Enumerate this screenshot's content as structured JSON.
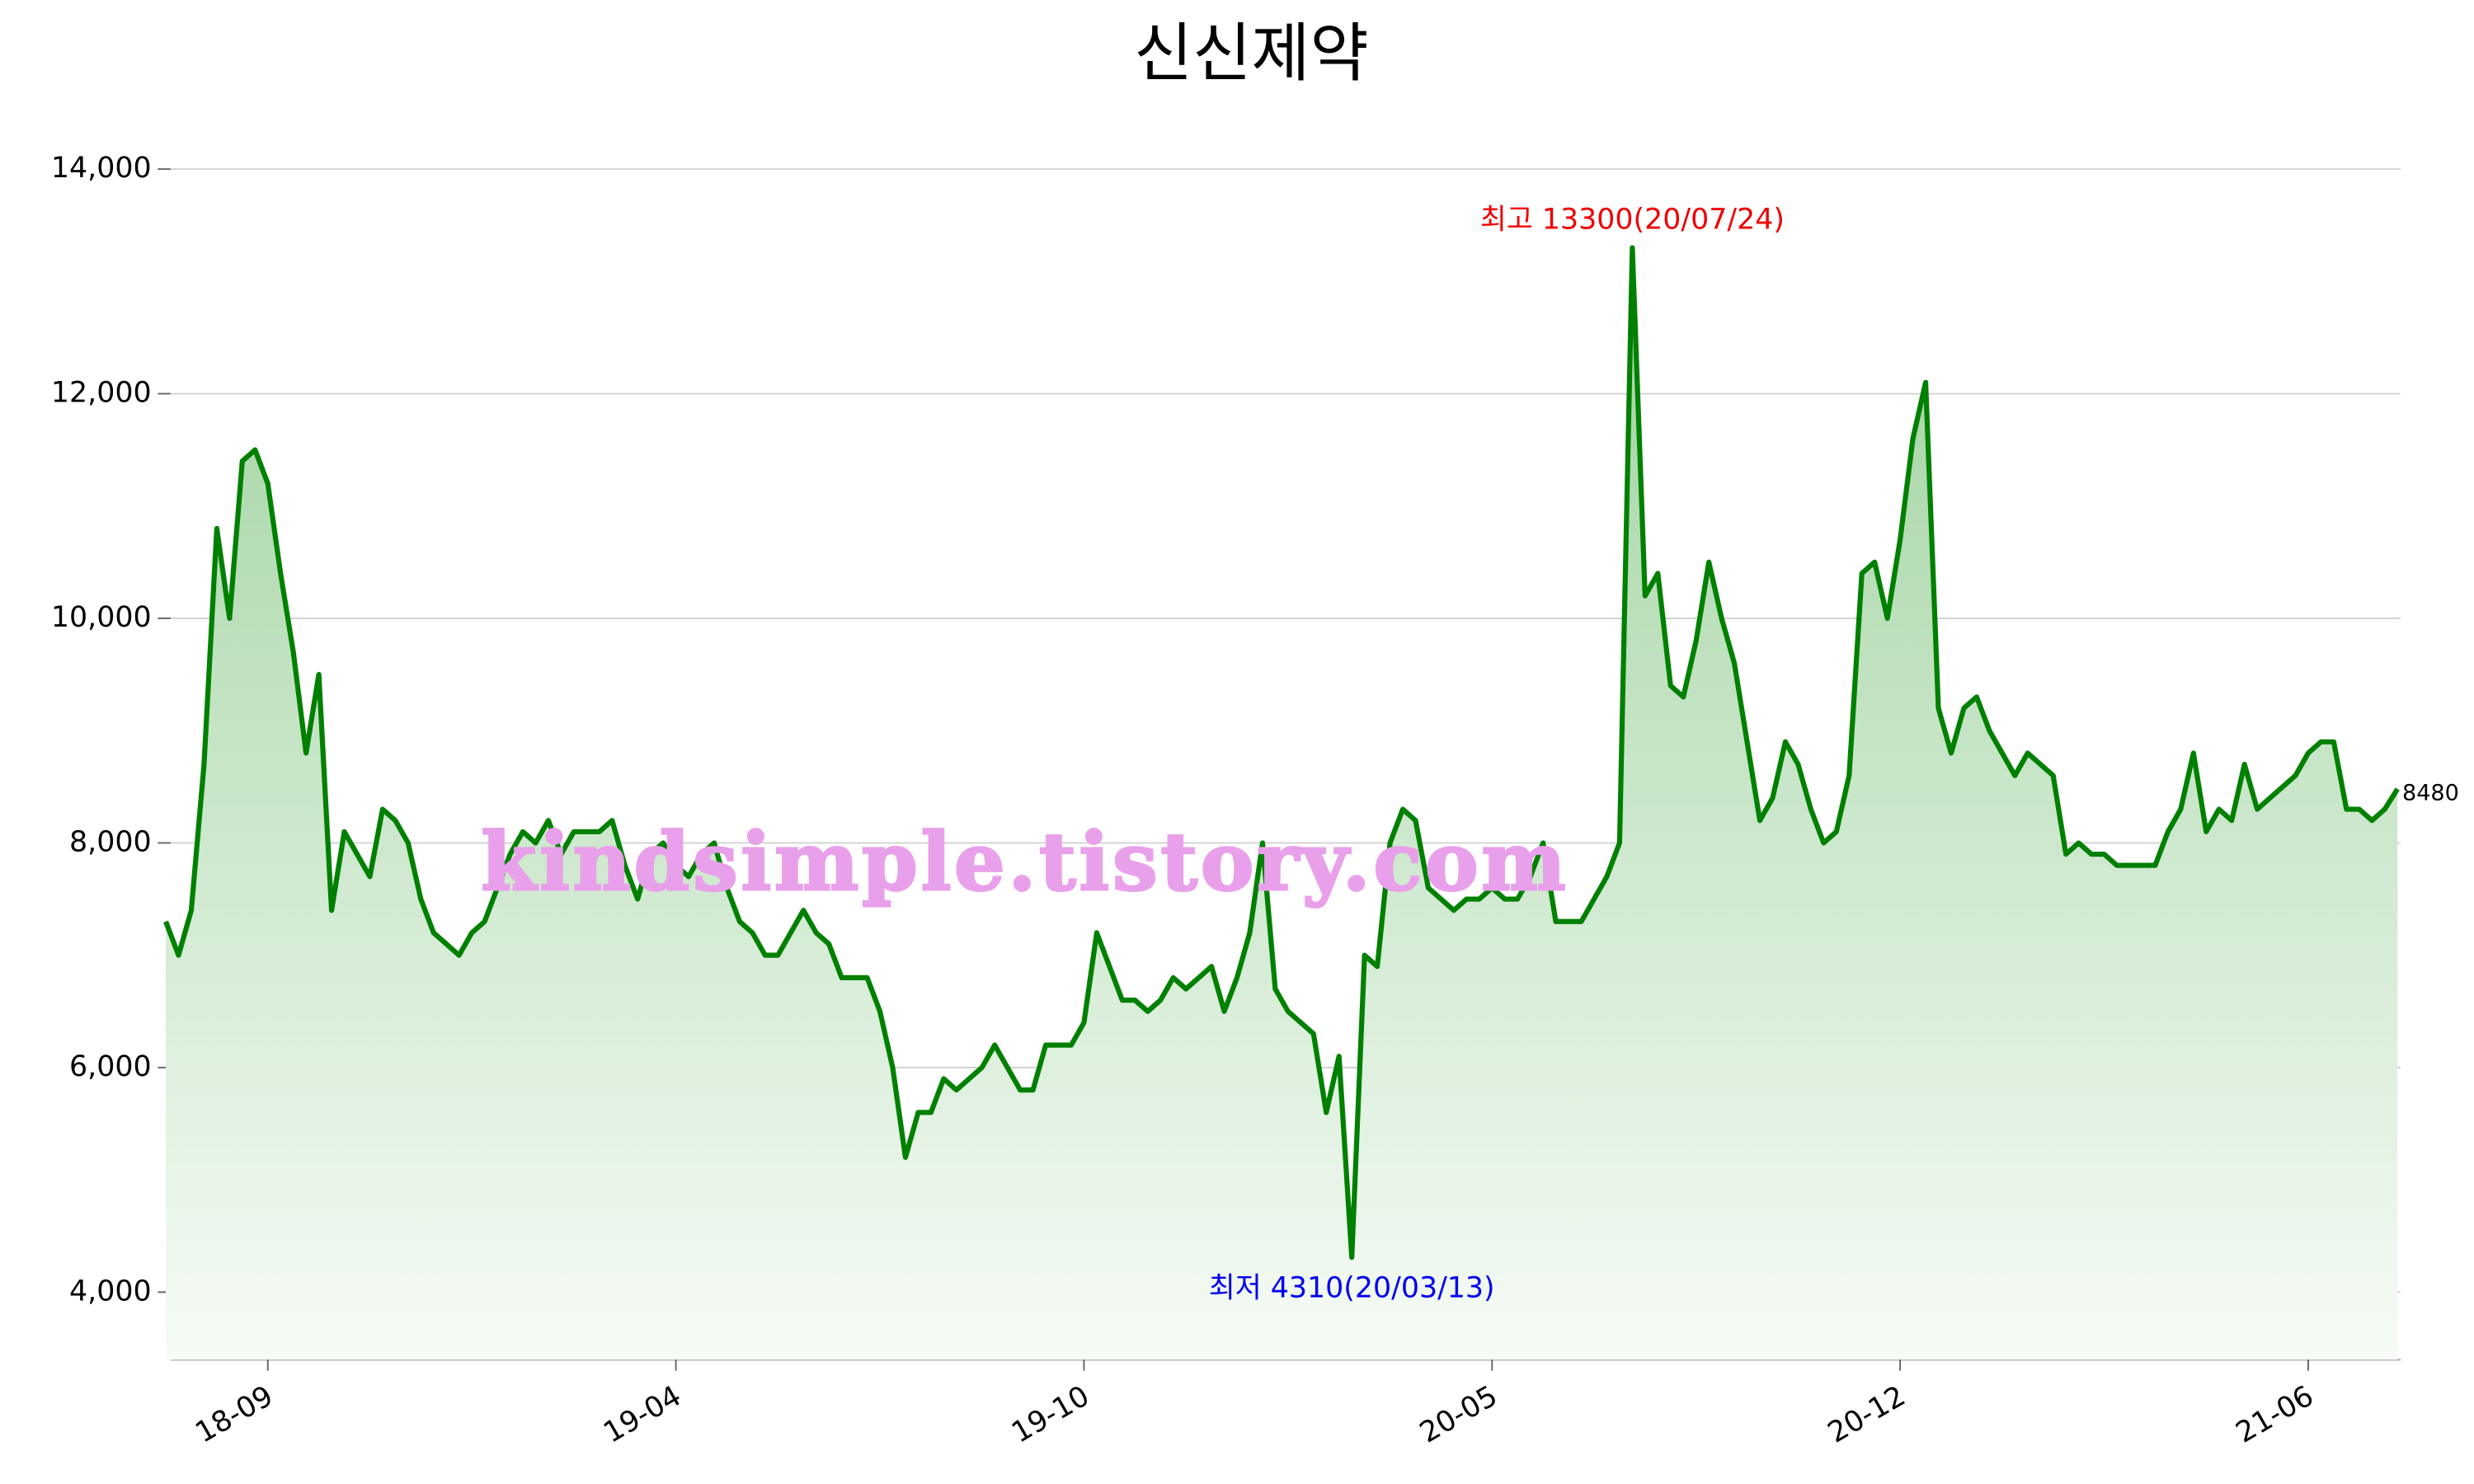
{
  "chart_data": {
    "type": "line",
    "title": "신신제약",
    "categories": [
      null,
      null,
      null,
      null,
      null,
      null,
      null,
      null,
      "18-09",
      null,
      null,
      null,
      null,
      null,
      null,
      null,
      null,
      null,
      null,
      null,
      null,
      null,
      null,
      null,
      null,
      null,
      null,
      null,
      null,
      null,
      null,
      null,
      null,
      null,
      null,
      null,
      null,
      null,
      null,
      null,
      "19-04",
      null,
      null,
      null,
      null,
      null,
      null,
      null,
      null,
      null,
      null,
      null,
      null,
      null,
      null,
      null,
      null,
      null,
      null,
      null,
      null,
      null,
      null,
      null,
      null,
      null,
      null,
      null,
      null,
      null,
      null,
      null,
      "19-10",
      null,
      null,
      null,
      null,
      null,
      null,
      null,
      null,
      null,
      null,
      null,
      null,
      null,
      null,
      null,
      null,
      null,
      null,
      null,
      null,
      null,
      null,
      null,
      null,
      null,
      null,
      null,
      null,
      null,
      null,
      null,
      "20-05",
      null,
      null,
      null,
      null,
      null,
      null,
      null,
      null,
      null,
      null,
      null,
      null,
      null,
      null,
      null,
      null,
      null,
      null,
      null,
      null,
      null,
      null,
      null,
      null,
      null,
      null,
      null,
      null,
      null,
      null,
      null,
      "20-12",
      null,
      null,
      null,
      null,
      null,
      null,
      null,
      null,
      null,
      null,
      null,
      null,
      null,
      null,
      null,
      null,
      null,
      null,
      null,
      null,
      null,
      null,
      null,
      null,
      null,
      null,
      null,
      null,
      null,
      null,
      null,
      "21-06",
      null,
      null,
      null,
      null,
      null,
      null,
      null
    ],
    "series": [
      {
        "name": "신신제약",
        "color": "#008000",
        "values": [
          7300,
          7000,
          7400,
          8700,
          10800,
          10000,
          11400,
          11500,
          11200,
          10400,
          9700,
          8800,
          9500,
          7400,
          8100,
          7900,
          7700,
          8300,
          8200,
          8000,
          7500,
          7200,
          7100,
          7000,
          7200,
          7300,
          7600,
          7900,
          8100,
          8000,
          8200,
          7900,
          8100,
          8100,
          8100,
          8200,
          7800,
          7500,
          7900,
          8000,
          7800,
          7700,
          7900,
          8000,
          7600,
          7300,
          7200,
          7000,
          7000,
          7200,
          7400,
          7200,
          7100,
          6800,
          6800,
          6800,
          6500,
          6000,
          5200,
          5600,
          5600,
          5900,
          5800,
          5900,
          6000,
          6200,
          6000,
          5800,
          5800,
          6200,
          6200,
          6200,
          6400,
          7200,
          6900,
          6600,
          6600,
          6500,
          6600,
          6800,
          6700,
          6800,
          6900,
          6500,
          6800,
          7200,
          8000,
          6700,
          6500,
          6400,
          6300,
          5600,
          6100,
          4310,
          7000,
          6900,
          8000,
          8300,
          8200,
          7600,
          7500,
          7400,
          7500,
          7500,
          7600,
          7500,
          7500,
          7700,
          8000,
          7300,
          7300,
          7300,
          7500,
          7700,
          8000,
          13300,
          10200,
          10400,
          9400,
          9300,
          9800,
          10500,
          10000,
          9600,
          8900,
          8200,
          8400,
          8900,
          8700,
          8300,
          8000,
          8100,
          8600,
          10400,
          10500,
          10000,
          10700,
          11600,
          12100,
          9200,
          8800,
          9200,
          9300,
          9000,
          8800,
          8600,
          8800,
          8700,
          8600,
          7900,
          8000,
          7900,
          7900,
          7800,
          7800,
          7800,
          7800,
          8100,
          8300,
          8800,
          8100,
          8300,
          8200,
          8700,
          8300,
          8400,
          8500,
          8600,
          8800,
          8900,
          8900,
          8300,
          8300,
          8200,
          8300,
          8480
        ]
      }
    ],
    "ylim": [
      3400,
      14000
    ],
    "yticks": [
      {
        "value": 4000,
        "label": "4,000"
      },
      {
        "value": 6000,
        "label": "6,000"
      },
      {
        "value": 8000,
        "label": "8,000"
      },
      {
        "value": 10000,
        "label": "10,000"
      },
      {
        "value": 12000,
        "label": "12,000"
      },
      {
        "value": 14000,
        "label": "14,000"
      }
    ],
    "grid": true,
    "annotations": [
      {
        "text": "최고 13300(20/07/24)",
        "color": "#ee0000",
        "at": "max"
      },
      {
        "text": "최저 4310(20/03/13)",
        "color": "#0000ee",
        "at": "min"
      }
    ],
    "watermark": {
      "text": "kindsimple.tistory.com",
      "color": "#e9a0ea"
    }
  }
}
